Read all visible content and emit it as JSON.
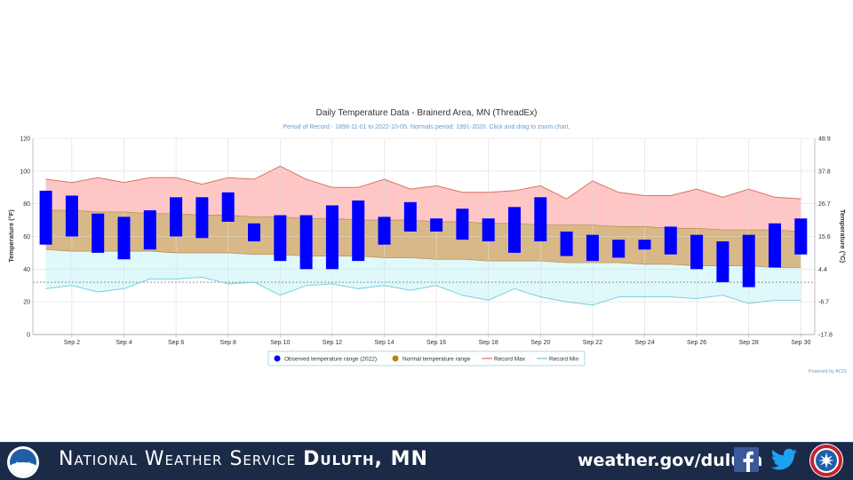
{
  "chart_data": {
    "type": "floating-bar-with-bands",
    "title": "Daily Temperature Data - Brainerd Area, MN (ThreadEx)",
    "subtitle": "Period of Record - 1898-11-01 to 2022-10-05. Normals period: 1991-2020. Click and drag to zoom chart.",
    "ylabel_left": "Temperature (°F)",
    "ylabel_right": "Temperature (°C)",
    "ylim": [
      0,
      120
    ],
    "left_ticks": [
      "0",
      "20",
      "40",
      "60",
      "80",
      "100",
      "120"
    ],
    "right_ticks": [
      "-17.8",
      "-6.7",
      "4.4",
      "15.6",
      "26.7",
      "37.8",
      "48.9"
    ],
    "x_tick_labels": [
      "Sep 2",
      "Sep 4",
      "Sep 6",
      "Sep 8",
      "Sep 10",
      "Sep 12",
      "Sep 14",
      "Sep 16",
      "Sep 18",
      "Sep 20",
      "Sep 22",
      "Sep 24",
      "Sep 26",
      "Sep 28",
      "Sep 30"
    ],
    "x_tick_days": [
      2,
      4,
      6,
      8,
      10,
      12,
      14,
      16,
      18,
      20,
      22,
      24,
      26,
      28,
      30
    ],
    "days": [
      1,
      2,
      3,
      4,
      5,
      6,
      7,
      8,
      9,
      10,
      11,
      12,
      13,
      14,
      15,
      16,
      17,
      18,
      19,
      20,
      21,
      22,
      23,
      24,
      25,
      26,
      27,
      28,
      29,
      30
    ],
    "observed_high": [
      88,
      85,
      74,
      72,
      76,
      84,
      84,
      87,
      68,
      73,
      73,
      79,
      82,
      72,
      81,
      71,
      77,
      71,
      78,
      84,
      63,
      61,
      58,
      58,
      66,
      61,
      57,
      61,
      68,
      71
    ],
    "observed_low": [
      55,
      60,
      50,
      46,
      52,
      60,
      59,
      69,
      57,
      45,
      40,
      40,
      45,
      55,
      63,
      63,
      58,
      57,
      50,
      57,
      48,
      45,
      47,
      52,
      49,
      40,
      32,
      29,
      41,
      49
    ],
    "record_max": [
      95,
      93,
      96,
      93,
      96,
      96,
      92,
      96,
      95,
      103,
      95,
      90,
      90,
      95,
      89,
      91,
      87,
      87,
      88,
      91,
      83,
      94,
      87,
      85,
      85,
      89,
      84,
      89,
      84,
      83
    ],
    "record_min": [
      28,
      30,
      26,
      28,
      34,
      34,
      35,
      31,
      32,
      24,
      30,
      31,
      28,
      30,
      27,
      30,
      24,
      21,
      28,
      23,
      20,
      18,
      23,
      23,
      23,
      22,
      24,
      19,
      21,
      21
    ],
    "normal_high": [
      76,
      76,
      75,
      75,
      74,
      74,
      73,
      73,
      72,
      72,
      71,
      71,
      70,
      70,
      70,
      69,
      69,
      68,
      68,
      67,
      67,
      67,
      66,
      66,
      65,
      65,
      64,
      64,
      64,
      63
    ],
    "normal_low": [
      52,
      51,
      51,
      51,
      51,
      50,
      50,
      50,
      49,
      49,
      48,
      48,
      48,
      47,
      47,
      46,
      46,
      45,
      45,
      45,
      44,
      44,
      44,
      43,
      43,
      42,
      42,
      42,
      41,
      41
    ],
    "reference_line_f": 32,
    "grid": true,
    "legend_position": "bottom",
    "legend": [
      {
        "label": "Observed temperature range (2022)",
        "color": "#0000ff"
      },
      {
        "label": "Normal temperature range",
        "color": "#b8860b"
      },
      {
        "label": "Record Max",
        "color": "#e07060"
      },
      {
        "label": "Record Min",
        "color": "#6ec6d8"
      }
    ],
    "credit": "Powered by ACIS",
    "colors": {
      "observed": "#0000ff",
      "normal_fill": "#d9b887",
      "record_max_fill": "#ffc6c6",
      "record_min_fill": "#dff9fb",
      "record_max_line": "#d9735f",
      "record_min_line": "#7ccfdf"
    }
  },
  "banner": {
    "title_prefix": "National Weather Service ",
    "title_office": "Duluth, MN",
    "url": "weather.gov/duluth",
    "noaa_logo_icon": "noaa-logo-icon",
    "facebook_icon": "facebook-icon",
    "twitter_icon": "twitter-icon",
    "nws_logo_icon": "nws-seal-icon",
    "background_color": "#1b2a47"
  }
}
